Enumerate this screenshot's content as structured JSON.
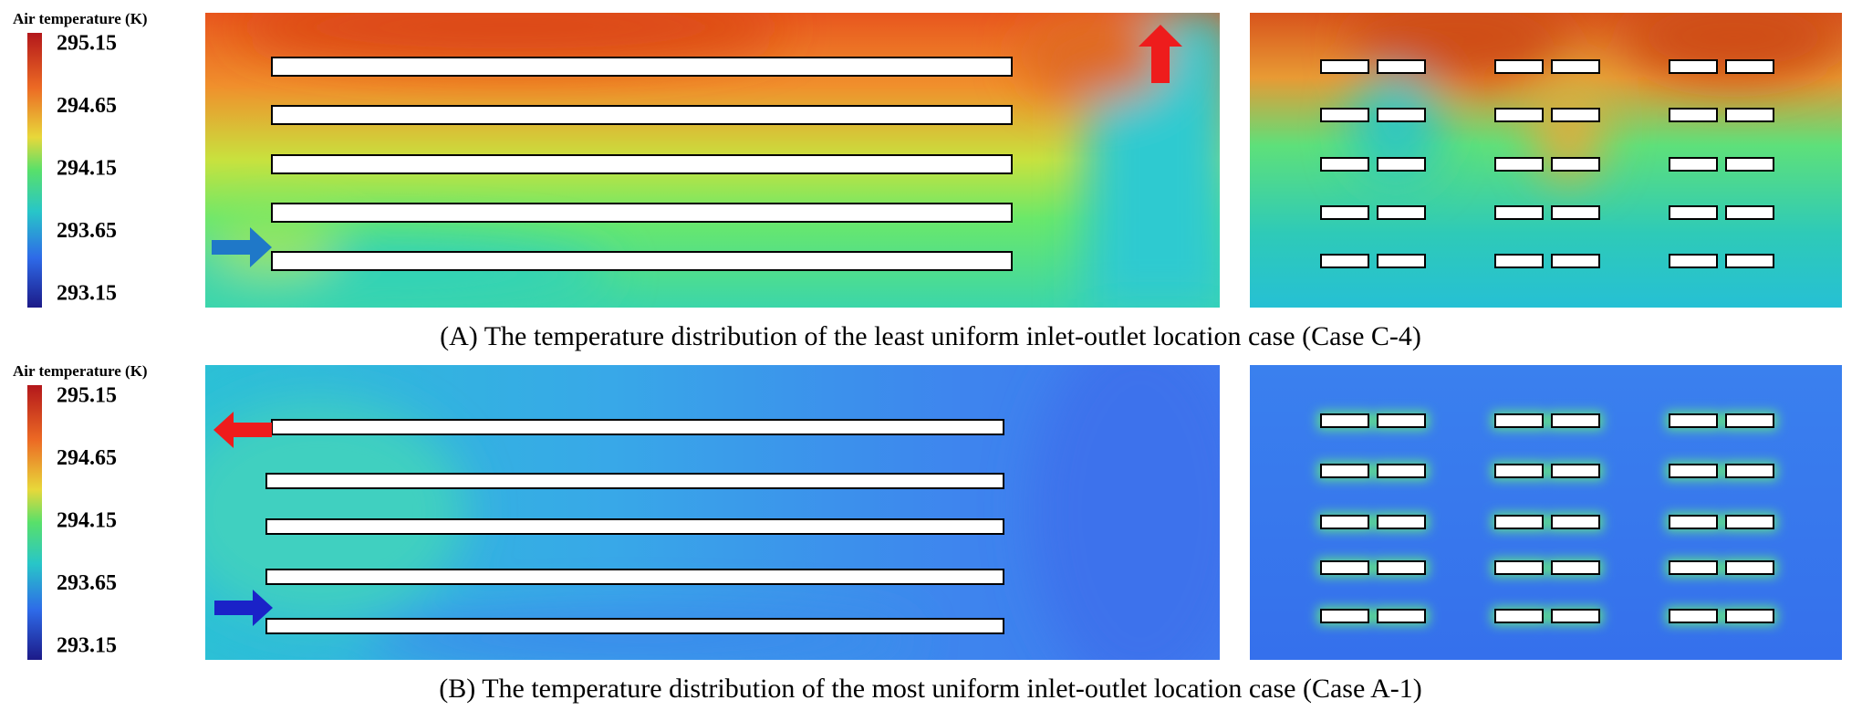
{
  "panels": [
    {
      "legend": {
        "title": "Air temperature (K)",
        "ticks": [
          295.15,
          294.65,
          294.15,
          293.65,
          293.15
        ]
      },
      "caption": "(A) The temperature distribution of the least uniform inlet-outlet location case (Case C-4)"
    },
    {
      "legend": {
        "title": "Air temperature (K)",
        "ticks": [
          295.15,
          294.65,
          294.15,
          293.65,
          293.15
        ]
      },
      "caption": "(B) The temperature distribution of the most uniform inlet-outlet location case (Case A-1)"
    }
  ]
}
